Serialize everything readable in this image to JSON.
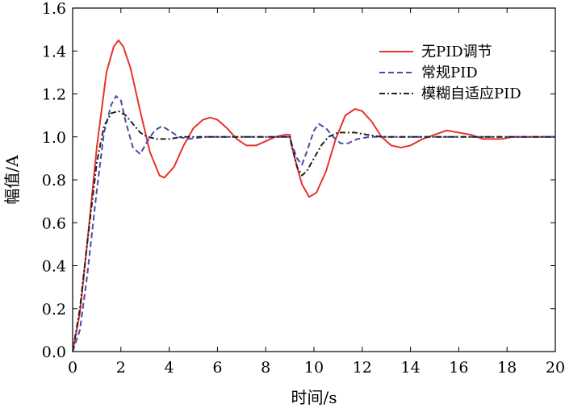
{
  "chart_data": {
    "type": "line",
    "title": "",
    "xlabel": "时间/s",
    "ylabel": "幅值/A",
    "xlim": [
      0,
      20
    ],
    "ylim": [
      0,
      1.6
    ],
    "xticks": [
      0,
      2,
      4,
      6,
      8,
      10,
      12,
      14,
      16,
      18,
      20
    ],
    "yticks": [
      0.0,
      0.2,
      0.4,
      0.6,
      0.8,
      1.0,
      1.2,
      1.4,
      1.6
    ],
    "xtick_labels": [
      "0",
      "2",
      "4",
      "6",
      "8",
      "10",
      "12",
      "14",
      "16",
      "18",
      "20"
    ],
    "ytick_labels": [
      "0.0",
      "0.2",
      "0.4",
      "0.6",
      "0.8",
      "1.0",
      "1.2",
      "1.4",
      "1.6"
    ],
    "grid": false,
    "legend_position": "top-right",
    "series": [
      {
        "name": "无PID调节",
        "color": "#e8322b",
        "dash": "solid",
        "x": [
          0,
          0.3,
          0.6,
          1.0,
          1.4,
          1.7,
          1.9,
          2.1,
          2.4,
          2.8,
          3.2,
          3.6,
          3.8,
          4.2,
          4.6,
          5.0,
          5.4,
          5.7,
          6.0,
          6.4,
          6.8,
          7.2,
          7.6,
          8.0,
          8.4,
          8.8,
          9.0,
          9.05,
          9.3,
          9.5,
          9.8,
          10.1,
          10.5,
          10.9,
          11.3,
          11.7,
          12.0,
          12.4,
          12.8,
          13.2,
          13.6,
          14.0,
          14.5,
          15.0,
          15.5,
          16.0,
          16.5,
          17.0,
          17.4,
          17.8,
          18.2,
          18.6,
          19.0,
          19.5,
          20.0
        ],
        "y": [
          0,
          0.18,
          0.5,
          0.95,
          1.3,
          1.42,
          1.45,
          1.42,
          1.32,
          1.12,
          0.93,
          0.82,
          0.81,
          0.86,
          0.96,
          1.04,
          1.08,
          1.09,
          1.08,
          1.04,
          0.99,
          0.96,
          0.96,
          0.98,
          1.0,
          1.01,
          1.01,
          0.97,
          0.86,
          0.78,
          0.72,
          0.74,
          0.84,
          0.99,
          1.1,
          1.13,
          1.12,
          1.07,
          1.0,
          0.96,
          0.95,
          0.96,
          0.99,
          1.01,
          1.03,
          1.02,
          1.01,
          0.99,
          0.99,
          0.99,
          1.0,
          1.0,
          1.0,
          1.0,
          1.0
        ]
      },
      {
        "name": "常规PID",
        "color": "#4a4aa8",
        "dash": "dashed",
        "x": [
          0,
          0.3,
          0.6,
          1.0,
          1.3,
          1.6,
          1.8,
          2.0,
          2.2,
          2.5,
          2.8,
          3.1,
          3.4,
          3.7,
          4.0,
          4.4,
          4.8,
          5.5,
          6.5,
          7.5,
          8.5,
          9.0,
          9.1,
          9.3,
          9.5,
          9.7,
          10.0,
          10.2,
          10.5,
          10.8,
          11.1,
          11.4,
          11.8,
          12.3,
          13.0,
          14.0,
          16.0,
          18.0,
          20.0
        ],
        "y": [
          0,
          0.1,
          0.35,
          0.75,
          1.02,
          1.15,
          1.19,
          1.17,
          1.07,
          0.95,
          0.92,
          0.98,
          1.03,
          1.05,
          1.03,
          1.0,
          0.99,
          1.0,
          1.0,
          1.0,
          1.0,
          1.0,
          0.96,
          0.9,
          0.87,
          0.93,
          1.03,
          1.06,
          1.04,
          1.0,
          0.97,
          0.97,
          0.99,
          1.0,
          1.0,
          1.0,
          1.0,
          1.0,
          1.0
        ]
      },
      {
        "name": "模糊自适应PID",
        "color": "#222222",
        "dash": "dashdot",
        "x": [
          0,
          0.3,
          0.6,
          1.0,
          1.3,
          1.6,
          1.9,
          2.2,
          2.5,
          2.8,
          3.1,
          3.5,
          4.0,
          4.5,
          5.0,
          6.0,
          7.0,
          8.0,
          8.9,
          9.0,
          9.1,
          9.3,
          9.5,
          9.7,
          10.0,
          10.3,
          10.6,
          11.0,
          11.3,
          11.7,
          12.2,
          12.8,
          13.5,
          14.5,
          16.0,
          18.0,
          20.0
        ],
        "y": [
          0,
          0.2,
          0.5,
          0.88,
          1.05,
          1.11,
          1.12,
          1.1,
          1.06,
          1.02,
          1.0,
          0.99,
          0.99,
          1.0,
          1.0,
          1.0,
          1.0,
          1.0,
          1.0,
          1.0,
          0.95,
          0.86,
          0.82,
          0.84,
          0.9,
          0.96,
          1.0,
          1.02,
          1.02,
          1.02,
          1.01,
          1.0,
          1.0,
          1.0,
          1.0,
          1.0,
          1.0
        ]
      }
    ]
  }
}
